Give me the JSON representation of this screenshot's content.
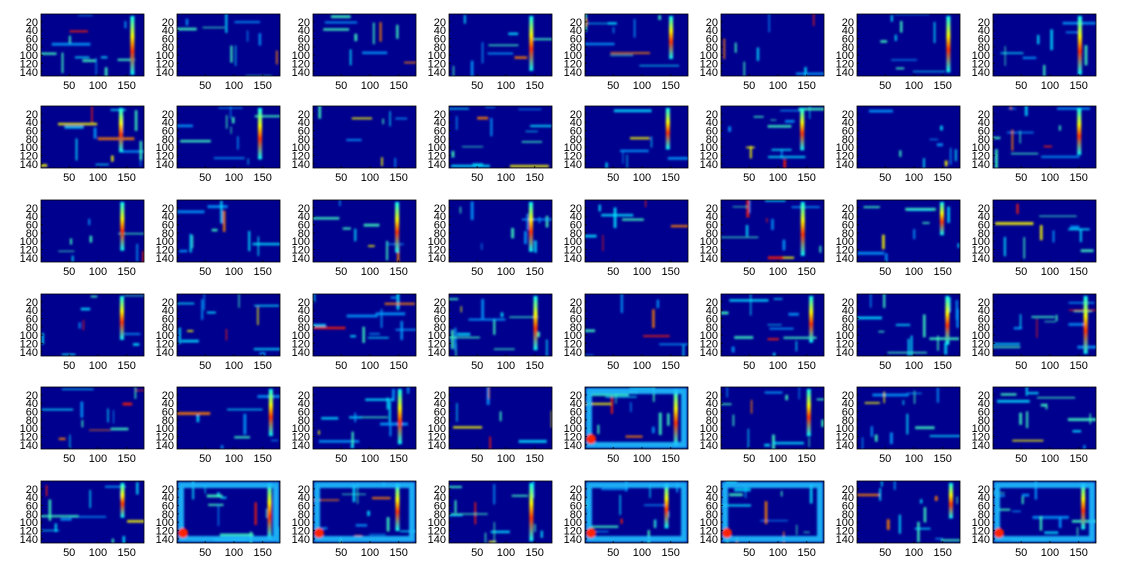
{
  "figure": {
    "rows": 6,
    "cols": 8,
    "panel_count": 48
  },
  "chart_data": {
    "type": "heatmap",
    "colormap": "jet",
    "colors": [
      "#000080",
      "#0000ff",
      "#00ffff",
      "#ffff00",
      "#ff0000",
      "#800000"
    ],
    "panel_style": "feature-map heatmaps; mostly low values (dark blue) with sparse high-activation streaks",
    "x_range": [
      1,
      180
    ],
    "y_range": [
      1,
      150
    ],
    "y_reversed": true,
    "x_ticks": [
      50,
      100,
      150
    ],
    "x_tick_labels": [
      "50",
      "100",
      "150"
    ],
    "y_ticks": [
      20,
      40,
      60,
      80,
      100,
      120,
      140
    ],
    "y_tick_labels": [
      "20",
      "40",
      "60",
      "80",
      "100",
      "120",
      "140"
    ],
    "grid": false,
    "legend": "none",
    "title": "",
    "xlabel": "",
    "ylabel": ""
  }
}
